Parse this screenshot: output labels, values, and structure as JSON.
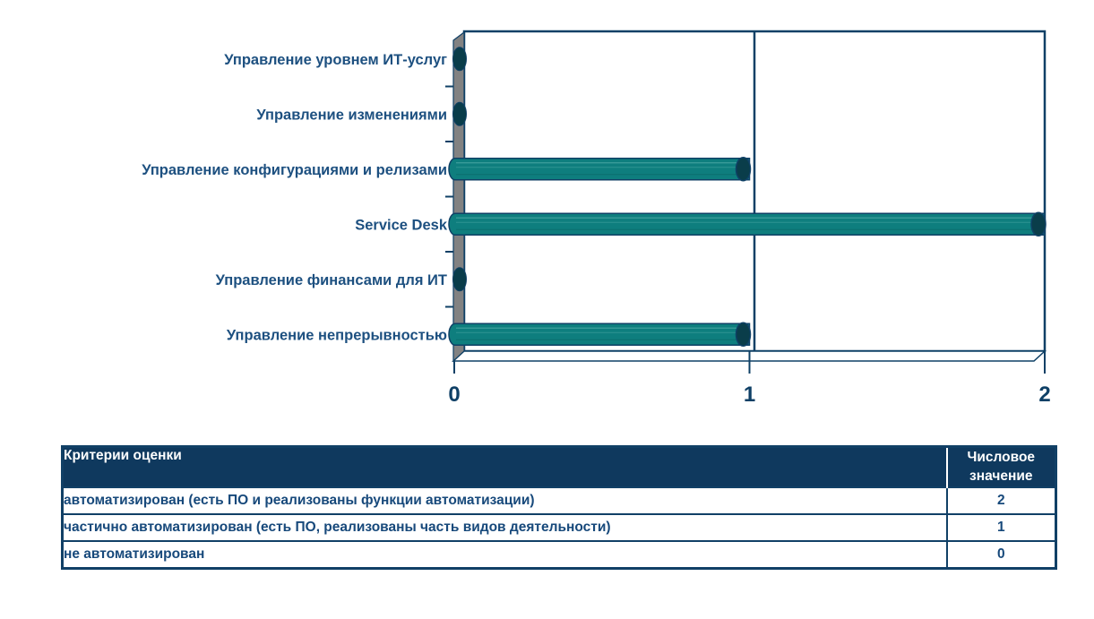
{
  "chart_data": {
    "type": "bar",
    "orientation": "horizontal",
    "style": "3d-cylinder",
    "categories": [
      "Управление уровнем ИТ-услуг",
      "Управление изменениями",
      "Управление конфигурациями и релизами",
      "Service Desk",
      "Управление финансами для ИТ",
      "Управление непрерывностью"
    ],
    "values": [
      0,
      0,
      1,
      2,
      0,
      1
    ],
    "xlim": [
      0,
      2
    ],
    "x_ticks": [
      "0",
      "1",
      "2"
    ],
    "grid": "vertical gridline at each x tick",
    "legend": "none",
    "title": "",
    "colors": {
      "bar": "#0E7E7E",
      "bar_highlight": "#45A3A0",
      "bar_shade": "#0A6868",
      "bar_cap": "#0A3D4A",
      "axis": "#0F4066",
      "label_text": "#1D5080",
      "wall_gray": "#828282",
      "plot_bg": "#FFFFFF"
    }
  },
  "table": {
    "header": {
      "criteria": "Критерии оценки",
      "value": "Числовое значение"
    },
    "rows": [
      {
        "criteria": "автоматизирован (есть ПО и реализованы функции автоматизации)",
        "value": "2"
      },
      {
        "criteria": "частично автоматизирован (есть ПО, реализованы часть видов деятельности)",
        "value": "1"
      },
      {
        "criteria": "не автоматизирован",
        "value": "0"
      }
    ],
    "colors": {
      "header_bg": "#0F395E",
      "header_text": "#FFFFFF",
      "border": "#114066",
      "row_text": "#17497B",
      "row_bg": "#FFFFFF"
    }
  }
}
